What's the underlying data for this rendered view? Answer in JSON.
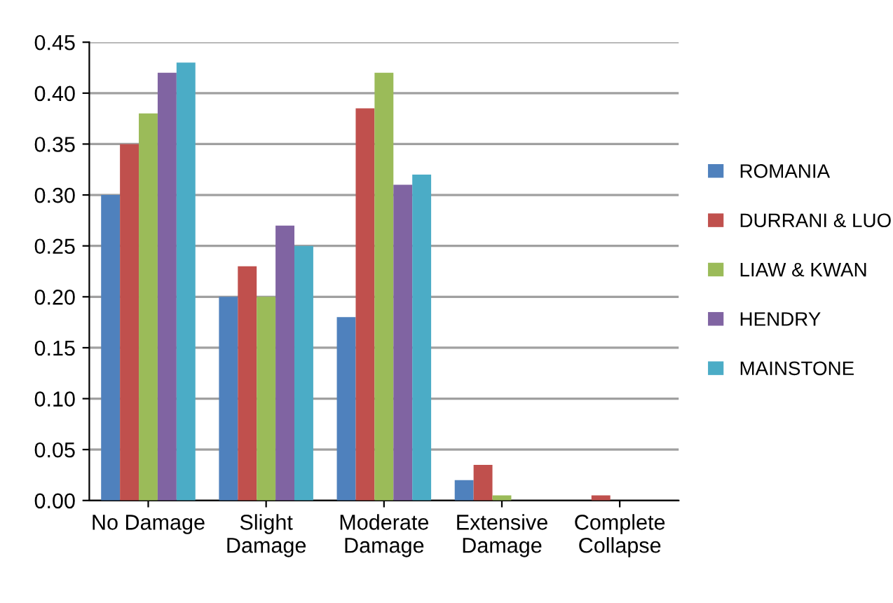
{
  "chart_data": {
    "type": "bar",
    "categories": [
      "No Damage",
      "Slight\nDamage",
      "Moderate\nDamage",
      "Extensive\nDamage",
      "Complete\nCollapse"
    ],
    "series": [
      {
        "name": "ROMANIA",
        "color": "#4f81bd",
        "values": [
          0.3,
          0.2,
          0.18,
          0.02,
          0
        ]
      },
      {
        "name": "DURRANI & LUO",
        "color": "#c0504d",
        "values": [
          0.35,
          0.23,
          0.385,
          0.035,
          0.005
        ]
      },
      {
        "name": "LIAW & KWAN",
        "color": "#9bbb59",
        "values": [
          0.38,
          0.2,
          0.42,
          0.005,
          0
        ]
      },
      {
        "name": "HENDRY",
        "color": "#8064a2",
        "values": [
          0.42,
          0.27,
          0.31,
          0,
          0
        ]
      },
      {
        "name": "MAINSTONE",
        "color": "#4bacc6",
        "values": [
          0.43,
          0.25,
          0.32,
          0,
          0
        ]
      }
    ],
    "ylim": [
      0,
      0.45
    ],
    "yticks": [
      {
        "value": 0,
        "label": "0.00"
      },
      {
        "value": 0.05,
        "label": "0.05"
      },
      {
        "value": 0.1,
        "label": "0.10"
      },
      {
        "value": 0.15,
        "label": "0.15"
      },
      {
        "value": 0.2,
        "label": "0.20"
      },
      {
        "value": 0.25,
        "label": "0.25"
      },
      {
        "value": 0.3,
        "label": "0.30"
      },
      {
        "value": 0.35,
        "label": "0.35"
      },
      {
        "value": 0.4,
        "label": "0.40"
      },
      {
        "value": 0.45,
        "label": "0.45"
      }
    ],
    "grid": "y",
    "legend": "right"
  }
}
